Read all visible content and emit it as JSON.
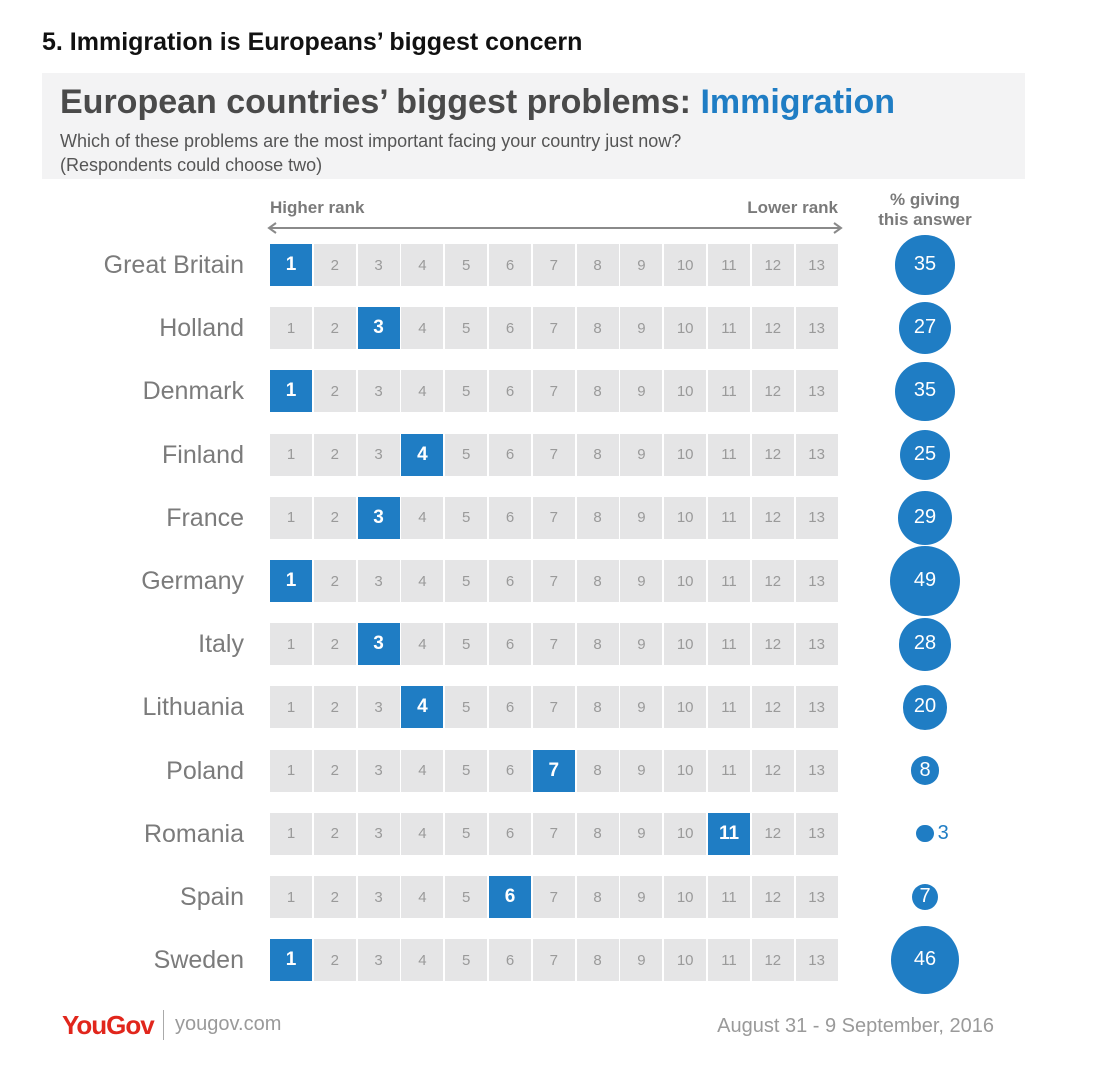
{
  "page_heading": "5. Immigration is Europeans’ biggest concern",
  "title_main": "European countries’ biggest problems: ",
  "title_accent": "Immigration",
  "subtitle_line1": "Which of these problems are the most important facing your country just now?",
  "subtitle_line2": "(Respondents could choose two)",
  "higher_rank_label": "Higher rank",
  "lower_rank_label": "Lower rank",
  "pct_header_line1": "% giving",
  "pct_header_line2": "this answer",
  "footer": {
    "brand": "YouGov",
    "url": "yougov.com",
    "date": "August 31 - 9 September, 2016"
  },
  "colors": {
    "accent": "#1f7dc4",
    "cell_bg": "#e5e5e6",
    "brand_red": "#e1261c"
  },
  "chart_data": {
    "type": "table",
    "title": "European countries’ biggest problems: Immigration",
    "rank_columns": [
      1,
      2,
      3,
      4,
      5,
      6,
      7,
      8,
      9,
      10,
      11,
      12,
      13
    ],
    "rows": [
      {
        "country": "Great Britain",
        "rank": 1,
        "percent": 35
      },
      {
        "country": "Holland",
        "rank": 3,
        "percent": 27
      },
      {
        "country": "Denmark",
        "rank": 1,
        "percent": 35
      },
      {
        "country": "Finland",
        "rank": 4,
        "percent": 25
      },
      {
        "country": "France",
        "rank": 3,
        "percent": 29
      },
      {
        "country": "Germany",
        "rank": 1,
        "percent": 49
      },
      {
        "country": "Italy",
        "rank": 3,
        "percent": 28
      },
      {
        "country": "Lithuania",
        "rank": 4,
        "percent": 20
      },
      {
        "country": "Poland",
        "rank": 7,
        "percent": 8
      },
      {
        "country": "Romania",
        "rank": 11,
        "percent": 3
      },
      {
        "country": "Spain",
        "rank": 6,
        "percent": 7
      },
      {
        "country": "Sweden",
        "rank": 1,
        "percent": 46
      }
    ]
  }
}
